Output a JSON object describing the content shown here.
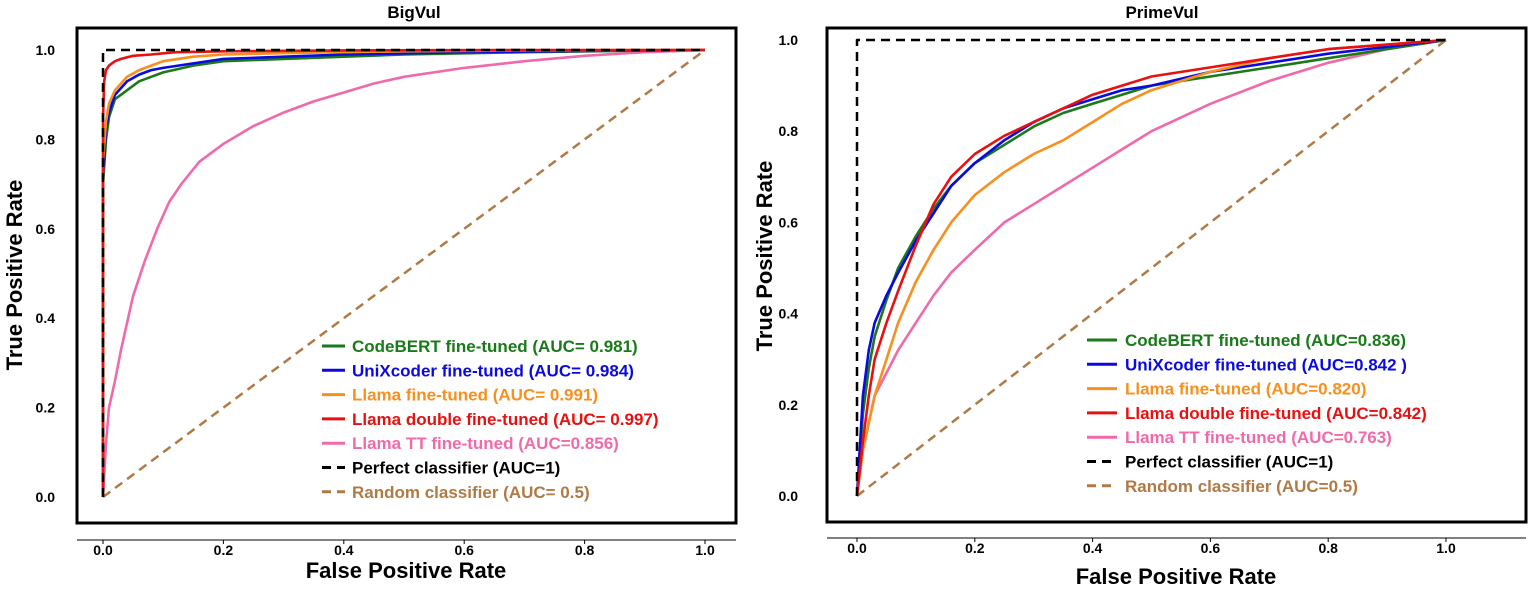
{
  "chart_data": [
    {
      "type": "line",
      "title": "BigVul",
      "xlabel": "False Positive Rate",
      "ylabel": "True Positive Rate",
      "xlim": [
        0,
        1
      ],
      "ylim": [
        0,
        1
      ],
      "xticks": [
        "0.0",
        "0.2",
        "0.4",
        "0.6",
        "0.8",
        "1.0"
      ],
      "yticks": [
        "0.0",
        "0.2",
        "0.4",
        "0.6",
        "0.8",
        "1.0"
      ],
      "legend_position": "bottom-right",
      "series": [
        {
          "name": "CodeBERT fine-tuned (AUC= 0.981)",
          "color": "#1a7a1a",
          "dash": "solid",
          "x": [
            0,
            0.0,
            0.005,
            0.01,
            0.02,
            0.04,
            0.06,
            0.08,
            0.1,
            0.15,
            0.2,
            0.3,
            0.4,
            0.5,
            0.7,
            0.85,
            1.0
          ],
          "y": [
            0,
            0.7,
            0.8,
            0.85,
            0.89,
            0.91,
            0.93,
            0.94,
            0.95,
            0.965,
            0.975,
            0.98,
            0.985,
            0.99,
            0.995,
            0.998,
            1.0
          ]
        },
        {
          "name": "UniXcoder fine-tuned (AUC= 0.984)",
          "color": "#0a0ae0",
          "dash": "solid",
          "x": [
            0,
            0.0,
            0.005,
            0.01,
            0.02,
            0.04,
            0.06,
            0.08,
            0.1,
            0.15,
            0.2,
            0.3,
            0.4,
            0.6,
            0.8,
            1.0
          ],
          "y": [
            0,
            0.72,
            0.82,
            0.86,
            0.9,
            0.93,
            0.945,
            0.955,
            0.96,
            0.97,
            0.98,
            0.985,
            0.99,
            0.995,
            0.998,
            1.0
          ]
        },
        {
          "name": "Llama fine-tuned (AUC= 0.991)",
          "color": "#f7901e",
          "dash": "solid",
          "x": [
            0,
            0.0,
            0.005,
            0.01,
            0.02,
            0.04,
            0.06,
            0.08,
            0.1,
            0.15,
            0.2,
            0.3,
            0.5,
            0.7,
            1.0
          ],
          "y": [
            0,
            0.75,
            0.84,
            0.88,
            0.91,
            0.94,
            0.955,
            0.965,
            0.975,
            0.985,
            0.99,
            0.993,
            0.997,
            0.999,
            1.0
          ]
        },
        {
          "name": "Llama double fine-tuned (AUC= 0.997)",
          "color": "#e81010",
          "dash": "solid",
          "x": [
            0,
            0.0,
            0.002,
            0.005,
            0.01,
            0.02,
            0.03,
            0.05,
            0.08,
            0.12,
            0.2,
            0.4,
            0.7,
            1.0
          ],
          "y": [
            0,
            0.85,
            0.93,
            0.955,
            0.965,
            0.975,
            0.98,
            0.987,
            0.99,
            0.995,
            0.997,
            0.999,
            1.0,
            1.0
          ]
        },
        {
          "name": "Llama TT fine-tuned (AUC=0.856)",
          "color": "#f06aaa",
          "dash": "solid",
          "x": [
            0,
            0.005,
            0.01,
            0.02,
            0.03,
            0.04,
            0.05,
            0.07,
            0.09,
            0.11,
            0.13,
            0.16,
            0.2,
            0.25,
            0.3,
            0.35,
            0.4,
            0.45,
            0.5,
            0.6,
            0.7,
            0.8,
            0.9,
            1.0
          ],
          "y": [
            0,
            0.12,
            0.2,
            0.26,
            0.33,
            0.39,
            0.45,
            0.53,
            0.6,
            0.66,
            0.7,
            0.75,
            0.79,
            0.83,
            0.86,
            0.885,
            0.905,
            0.925,
            0.94,
            0.96,
            0.975,
            0.987,
            0.995,
            1.0
          ]
        },
        {
          "name": "Perfect classifier (AUC=1)",
          "color": "#000000",
          "dash": "dashed",
          "x": [
            0,
            0,
            1
          ],
          "y": [
            0,
            1,
            1
          ]
        },
        {
          "name": "Random classifier (AUC= 0.5)",
          "color": "#b07a45",
          "dash": "dashed",
          "x": [
            0,
            1
          ],
          "y": [
            0,
            1
          ]
        }
      ]
    },
    {
      "type": "line",
      "title": "PrimeVul",
      "xlabel": "False Positive Rate",
      "ylabel": "True Positive Rate",
      "xlim": [
        0,
        1
      ],
      "ylim": [
        0,
        1
      ],
      "xticks": [
        "0.0",
        "0.2",
        "0.4",
        "0.6",
        "0.8",
        "1.0"
      ],
      "yticks": [
        "0.0",
        "0.2",
        "0.4",
        "0.6",
        "0.8",
        "1.0"
      ],
      "legend_position": "bottom-right",
      "series": [
        {
          "name": "CodeBERT fine-tuned (AUC=0.836)",
          "color": "#1a7a1a",
          "dash": "solid",
          "x": [
            0,
            0.01,
            0.02,
            0.03,
            0.05,
            0.07,
            0.1,
            0.13,
            0.16,
            0.2,
            0.25,
            0.3,
            0.35,
            0.4,
            0.45,
            0.5,
            0.6,
            0.7,
            0.8,
            0.9,
            1.0
          ],
          "y": [
            0,
            0.18,
            0.28,
            0.35,
            0.43,
            0.5,
            0.57,
            0.63,
            0.68,
            0.73,
            0.77,
            0.81,
            0.84,
            0.86,
            0.88,
            0.9,
            0.92,
            0.94,
            0.96,
            0.98,
            1.0
          ]
        },
        {
          "name": "UniXcoder fine-tuned (AUC=0.842 )",
          "color": "#0a0ae0",
          "dash": "solid",
          "x": [
            0,
            0.01,
            0.02,
            0.03,
            0.05,
            0.07,
            0.1,
            0.13,
            0.16,
            0.2,
            0.25,
            0.3,
            0.35,
            0.4,
            0.45,
            0.5,
            0.6,
            0.7,
            0.8,
            0.9,
            1.0
          ],
          "y": [
            0,
            0.22,
            0.32,
            0.38,
            0.44,
            0.49,
            0.56,
            0.62,
            0.68,
            0.73,
            0.78,
            0.82,
            0.85,
            0.87,
            0.89,
            0.9,
            0.93,
            0.95,
            0.97,
            0.985,
            1.0
          ]
        },
        {
          "name": "Llama fine-tuned (AUC=0.820)",
          "color": "#f7901e",
          "dash": "solid",
          "x": [
            0,
            0.01,
            0.02,
            0.03,
            0.05,
            0.07,
            0.1,
            0.13,
            0.16,
            0.2,
            0.25,
            0.3,
            0.35,
            0.4,
            0.45,
            0.5,
            0.6,
            0.7,
            0.8,
            0.9,
            1.0
          ],
          "y": [
            0,
            0.1,
            0.16,
            0.22,
            0.3,
            0.38,
            0.47,
            0.54,
            0.6,
            0.66,
            0.71,
            0.75,
            0.78,
            0.82,
            0.86,
            0.89,
            0.93,
            0.96,
            0.98,
            0.99,
            1.0
          ]
        },
        {
          "name": "Llama double fine-tuned (AUC=0.842)",
          "color": "#e81010",
          "dash": "solid",
          "x": [
            0,
            0.01,
            0.02,
            0.03,
            0.05,
            0.07,
            0.1,
            0.13,
            0.16,
            0.2,
            0.25,
            0.3,
            0.35,
            0.4,
            0.45,
            0.5,
            0.6,
            0.7,
            0.8,
            0.9,
            1.0
          ],
          "y": [
            0,
            0.12,
            0.22,
            0.3,
            0.38,
            0.45,
            0.55,
            0.64,
            0.7,
            0.75,
            0.79,
            0.82,
            0.85,
            0.88,
            0.9,
            0.92,
            0.94,
            0.96,
            0.98,
            0.99,
            1.0
          ]
        },
        {
          "name": "Llama TT fine-tuned (AUC=0.763)",
          "color": "#f06aaa",
          "dash": "solid",
          "x": [
            0,
            0.01,
            0.02,
            0.03,
            0.05,
            0.07,
            0.1,
            0.13,
            0.16,
            0.2,
            0.25,
            0.3,
            0.35,
            0.4,
            0.45,
            0.5,
            0.6,
            0.7,
            0.8,
            0.9,
            1.0
          ],
          "y": [
            0,
            0.1,
            0.16,
            0.22,
            0.27,
            0.32,
            0.38,
            0.44,
            0.49,
            0.54,
            0.6,
            0.64,
            0.68,
            0.72,
            0.76,
            0.8,
            0.86,
            0.91,
            0.95,
            0.98,
            1.0
          ]
        },
        {
          "name": "Perfect classifier (AUC=1)",
          "color": "#000000",
          "dash": "dashed",
          "x": [
            0,
            0,
            1
          ],
          "y": [
            0,
            1,
            1
          ]
        },
        {
          "name": "Random classifier (AUC=0.5)",
          "color": "#b07a45",
          "dash": "dashed",
          "x": [
            0,
            1
          ],
          "y": [
            0,
            1
          ]
        }
      ]
    }
  ]
}
